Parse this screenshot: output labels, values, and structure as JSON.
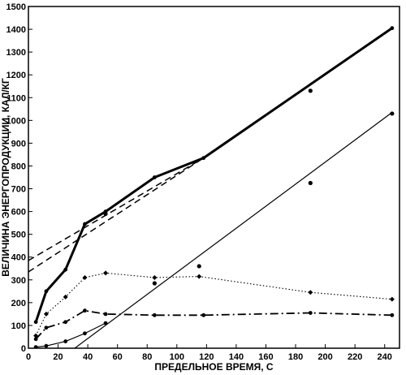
{
  "chart_data": {
    "type": "line",
    "title": "",
    "xlabel": "ПРЕДЕЛЬНОЕ ВРЕМЯ, С",
    "ylabel": "ВЕЛИЧИНА ЭНЕРГОПРОДУКЦИИ, КАЛ/КГ",
    "xlim": [
      0,
      250
    ],
    "ylim": [
      0,
      1500
    ],
    "xticks": [
      0,
      20,
      40,
      60,
      80,
      100,
      120,
      140,
      160,
      180,
      200,
      220,
      240
    ],
    "yticks": [
      0,
      100,
      200,
      300,
      400,
      500,
      600,
      700,
      800,
      900,
      1000,
      1100,
      1200,
      1300,
      1400,
      1500
    ],
    "grid": false,
    "legend": "none",
    "series": [
      {
        "style": "thick-solid",
        "color": "#000000",
        "x": [
          5,
          12,
          25,
          38,
          52,
          85,
          118,
          245
        ],
        "y": [
          115,
          250,
          345,
          545,
          600,
          750,
          835,
          1405
        ]
      },
      {
        "style": "dotted",
        "color": "#000000",
        "x": [
          5,
          12,
          25,
          38,
          52,
          85,
          115,
          190,
          245
        ],
        "y": [
          55,
          150,
          225,
          310,
          330,
          310,
          315,
          245,
          215
        ]
      },
      {
        "style": "dash-dot",
        "color": "#000000",
        "x": [
          5,
          12,
          25,
          38,
          52,
          85,
          118,
          190,
          245
        ],
        "y": [
          40,
          90,
          115,
          165,
          150,
          145,
          145,
          155,
          145
        ]
      },
      {
        "style": "thin-solid",
        "color": "#000000",
        "x": [
          5,
          12,
          25,
          38,
          52
        ],
        "y": [
          5,
          10,
          30,
          65,
          110
        ]
      }
    ],
    "fit_lines": [
      {
        "style": "thin-solid",
        "x": [
          25,
          245
        ],
        "y": [
          -30,
          1035
        ]
      },
      {
        "style": "dashed",
        "x": [
          0,
          118
        ],
        "y": [
          385,
          835
        ]
      },
      {
        "style": "dashed",
        "x": [
          0,
          118
        ],
        "y": [
          335,
          835
        ]
      }
    ],
    "scatter_points": [
      {
        "x": 52,
        "y": 590
      },
      {
        "x": 115,
        "y": 360
      },
      {
        "x": 85,
        "y": 285
      },
      {
        "x": 190,
        "y": 1130
      },
      {
        "x": 190,
        "y": 725
      },
      {
        "x": 245,
        "y": 1030
      }
    ]
  }
}
